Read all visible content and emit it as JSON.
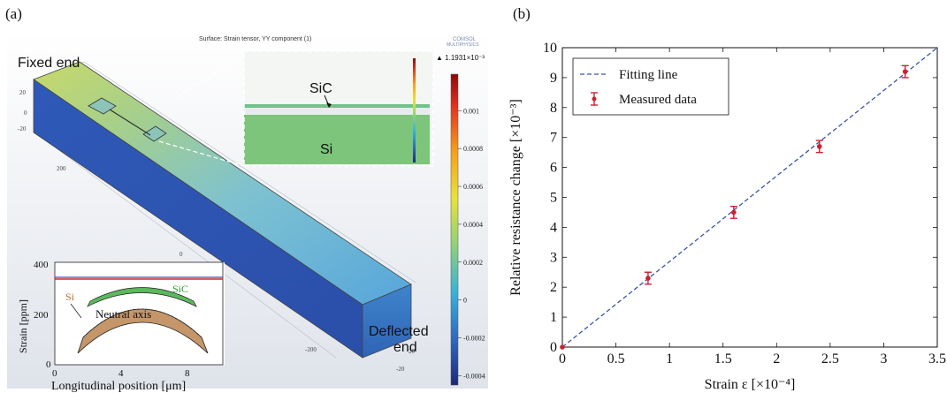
{
  "panel_a": {
    "label": "(a)",
    "surface_title": "Surface: Strain tensor, YY component (1)",
    "logo_line1": "COMSOL",
    "logo_line2": "MULTIPHYSICS",
    "max_label": "▲ 1.1931×10⁻³",
    "fixed_end": "Fixed end",
    "deflected_line1": "Deflected",
    "deflected_line2": "end",
    "inset_sic": "SiC",
    "inset_si": "Si",
    "axis_ticks": [
      "20",
      "0",
      "-20",
      "200",
      "0",
      "-200",
      "-20",
      "20"
    ],
    "colorbar": {
      "ticks": [
        "0.001",
        "0.0008",
        "0.0006",
        "0.0004",
        "0.0002",
        "0",
        "-0.0002",
        "-0.0004"
      ],
      "values": [
        0.001,
        0.0008,
        0.0006,
        0.0004,
        0.0002,
        0,
        -0.0002,
        -0.0004
      ],
      "min": -0.00045,
      "max": 0.0011931
    },
    "strain_inset": {
      "ylabel": "Strain [ppm]",
      "xlabel": "Longitudinal position [μm]",
      "yticks": [
        "400",
        "200",
        "0"
      ],
      "xticks": [
        "0",
        "4",
        "8"
      ],
      "si_label": "Si",
      "sic_label": "SiC",
      "neutral_label": "Neutral axis",
      "xlim": [
        0,
        10
      ],
      "ylim": [
        0,
        400
      ],
      "lines": [
        {
          "color": "#d62728",
          "y": 340
        },
        {
          "color": "#3b4cc0",
          "y": 345
        }
      ]
    }
  },
  "chart_data": {
    "type": "scatter",
    "panel_label": "(b)",
    "xlabel": "Strain ε [×10⁻⁴]",
    "ylabel": "Relative resistance change [×10⁻³]",
    "xlim": [
      0,
      3.5
    ],
    "ylim": [
      0,
      10
    ],
    "xticks": [
      "0",
      "0.5",
      "1",
      "1.5",
      "2",
      "2.5",
      "3",
      "3.5"
    ],
    "xtick_values": [
      0,
      0.5,
      1,
      1.5,
      2,
      2.5,
      3,
      3.5
    ],
    "yticks": [
      "0",
      "1",
      "2",
      "3",
      "4",
      "5",
      "6",
      "7",
      "8",
      "9",
      "10"
    ],
    "ytick_values": [
      0,
      1,
      2,
      3,
      4,
      5,
      6,
      7,
      8,
      9,
      10
    ],
    "grid": false,
    "legend_position": "top-left",
    "legend": [
      "Fitting line",
      "Measured data"
    ],
    "fit_line": {
      "x": [
        0,
        3.5
      ],
      "y": [
        0,
        10
      ],
      "color": "#3a55a8"
    },
    "measured": {
      "x": [
        0,
        0.8,
        1.6,
        2.4,
        3.2
      ],
      "y": [
        0,
        2.3,
        4.5,
        6.7,
        9.2
      ],
      "err": [
        0,
        0.2,
        0.2,
        0.2,
        0.2
      ],
      "color": "#cc2030"
    }
  }
}
